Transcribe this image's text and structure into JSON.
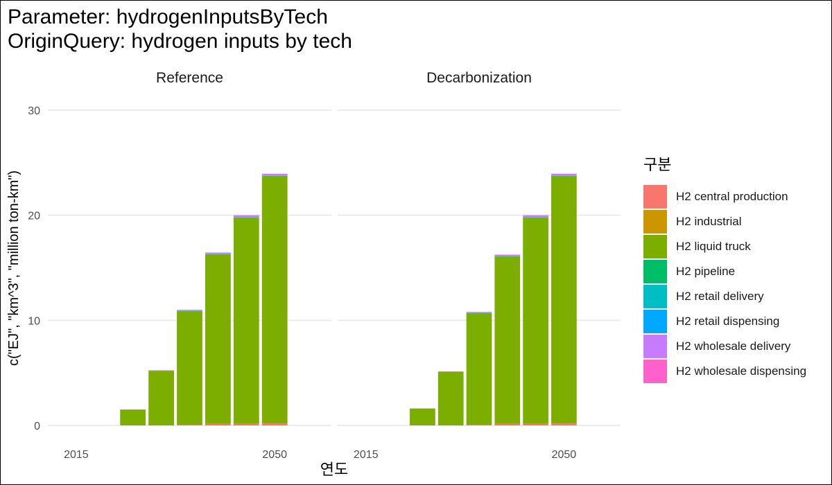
{
  "titles": {
    "line1": "Parameter: hydrogenInputsByTech",
    "line2": "OriginQuery: hydrogen inputs by tech"
  },
  "legend": {
    "title": "구분",
    "items": [
      {
        "label": "H2 central production",
        "color": "#F8766D"
      },
      {
        "label": "H2 industrial",
        "color": "#CD9600"
      },
      {
        "label": "H2 liquid truck",
        "color": "#7CAE00"
      },
      {
        "label": "H2 pipeline",
        "color": "#00BE67"
      },
      {
        "label": "H2 retail delivery",
        "color": "#00BFC4"
      },
      {
        "label": "H2 retail dispensing",
        "color": "#00A9FF"
      },
      {
        "label": "H2 wholesale delivery",
        "color": "#C77CFF"
      },
      {
        "label": "H2 wholesale dispensing",
        "color": "#FF61CC"
      }
    ]
  },
  "chart_data": {
    "type": "bar",
    "stacked": true,
    "xlabel": "연도",
    "ylabel": "c(\"EJ\", \"km^3\", \"million ton-km\")",
    "ylim": [
      0,
      30
    ],
    "yticks": [
      0,
      10,
      20,
      30
    ],
    "xlim": [
      2010,
      2060
    ],
    "xticks": [
      2015,
      2050
    ],
    "x": [
      2015,
      2020,
      2025,
      2030,
      2035,
      2040,
      2045,
      2050
    ],
    "grid": true,
    "legend_position": "right",
    "panels": [
      {
        "name": "Reference",
        "series": [
          {
            "name": "H2 central production",
            "values": [
              0,
              0,
              0,
              0,
              0.05,
              0.1,
              0.1,
              0.15
            ]
          },
          {
            "name": "H2 industrial",
            "values": [
              0,
              0,
              0,
              0,
              0,
              0.05,
              0.05,
              0.05
            ]
          },
          {
            "name": "H2 liquid truck",
            "values": [
              0,
              0,
              1.5,
              5.2,
              10.8,
              16.1,
              19.6,
              23.5
            ]
          },
          {
            "name": "H2 pipeline",
            "values": [
              0,
              0,
              0,
              0,
              0,
              0,
              0,
              0
            ]
          },
          {
            "name": "H2 retail delivery",
            "values": [
              0,
              0,
              0,
              0,
              0.05,
              0.05,
              0.05,
              0.05
            ]
          },
          {
            "name": "H2 retail dispensing",
            "values": [
              0,
              0,
              0,
              0,
              0,
              0,
              0,
              0
            ]
          },
          {
            "name": "H2 wholesale delivery",
            "values": [
              0,
              0,
              0.02,
              0.05,
              0.1,
              0.15,
              0.2,
              0.2
            ]
          },
          {
            "name": "H2 wholesale dispensing",
            "values": [
              0,
              0,
              0,
              0,
              0,
              0,
              0,
              0
            ]
          }
        ]
      },
      {
        "name": "Decarbonization",
        "series": [
          {
            "name": "H2 central production",
            "values": [
              0,
              0,
              0,
              0,
              0.05,
              0.1,
              0.1,
              0.15
            ]
          },
          {
            "name": "H2 industrial",
            "values": [
              0,
              0,
              0,
              0,
              0,
              0.05,
              0.05,
              0.05
            ]
          },
          {
            "name": "H2 liquid truck",
            "values": [
              0,
              0,
              1.6,
              5.1,
              10.6,
              15.9,
              19.6,
              23.5
            ]
          },
          {
            "name": "H2 pipeline",
            "values": [
              0,
              0,
              0,
              0,
              0,
              0,
              0,
              0
            ]
          },
          {
            "name": "H2 retail delivery",
            "values": [
              0,
              0,
              0,
              0,
              0.05,
              0.05,
              0.05,
              0.05
            ]
          },
          {
            "name": "H2 retail dispensing",
            "values": [
              0,
              0,
              0,
              0,
              0,
              0,
              0,
              0
            ]
          },
          {
            "name": "H2 wholesale delivery",
            "values": [
              0,
              0,
              0.02,
              0.05,
              0.1,
              0.15,
              0.2,
              0.2
            ]
          },
          {
            "name": "H2 wholesale dispensing",
            "values": [
              0,
              0,
              0,
              0,
              0,
              0,
              0,
              0
            ]
          }
        ]
      }
    ]
  }
}
